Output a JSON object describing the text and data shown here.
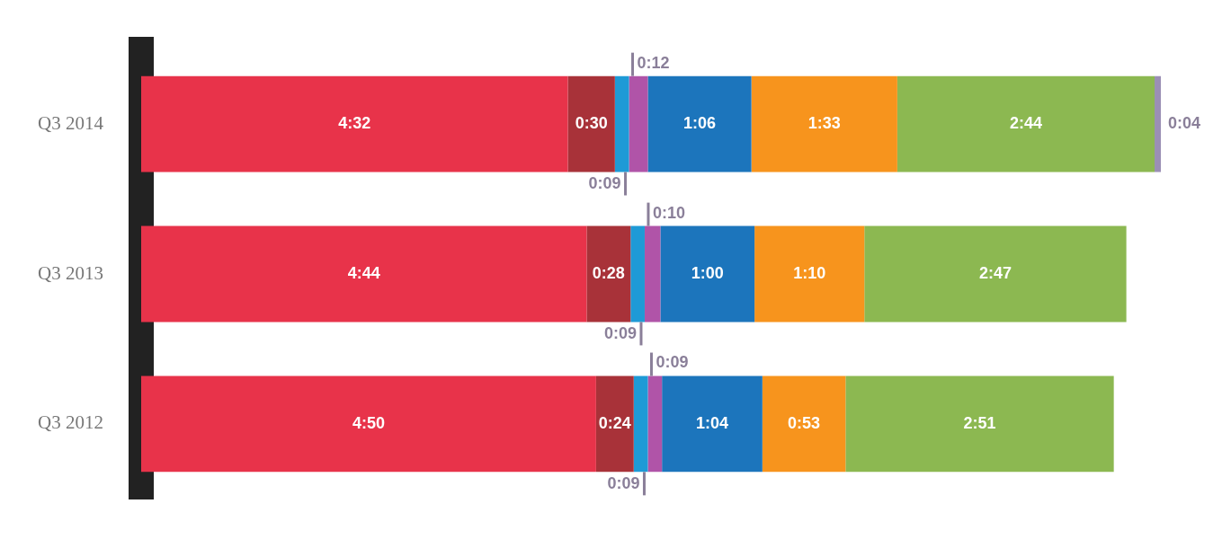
{
  "chart_data": {
    "type": "bar",
    "orientation": "horizontal",
    "stacked": true,
    "categories": [
      "Q3 2014",
      "Q3 2013",
      "Q3 2012"
    ],
    "series": [
      {
        "color": "#e8334a",
        "values": [
          272,
          284,
          290
        ],
        "value_labels": [
          "4:32",
          "4:44",
          "4:50"
        ]
      },
      {
        "color": "#a83239",
        "values": [
          30,
          28,
          24
        ],
        "value_labels": [
          "0:30",
          "0:28",
          "0:24"
        ]
      },
      {
        "color": "#1e9ad6",
        "values": [
          9,
          9,
          9
        ],
        "value_labels": [
          "0:09",
          "0:09",
          "0:09"
        ]
      },
      {
        "color": "#b054a8",
        "values": [
          12,
          10,
          9
        ],
        "value_labels": [
          "0:12",
          "0:10",
          "0:09"
        ]
      },
      {
        "color": "#1c75bc",
        "values": [
          66,
          60,
          64
        ],
        "value_labels": [
          "1:06",
          "1:00",
          "1:04"
        ]
      },
      {
        "color": "#f7941d",
        "values": [
          93,
          70,
          53
        ],
        "value_labels": [
          "1:33",
          "1:10",
          "0:53"
        ]
      },
      {
        "color": "#8cb851",
        "values": [
          164,
          167,
          171
        ],
        "value_labels": [
          "2:44",
          "2:47",
          "2:51"
        ]
      },
      {
        "color": "#9b8fb5",
        "values": [
          4,
          null,
          null
        ],
        "value_labels": [
          "0:04",
          null,
          null
        ]
      }
    ],
    "legend": false
  }
}
